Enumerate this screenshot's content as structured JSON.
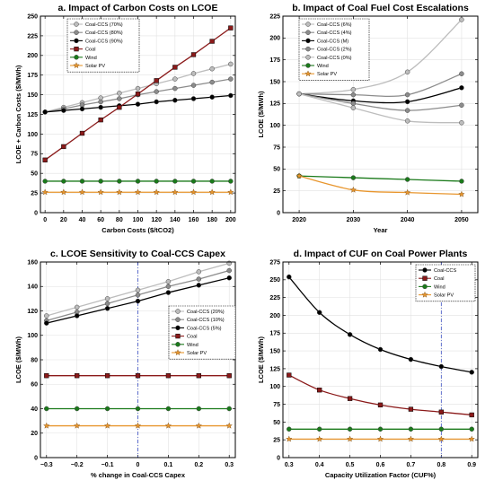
{
  "chart_data": [
    {
      "type": "line",
      "title": "a. Impact of Carbon Costs on LCOE",
      "xlabel": "Carbon Costs ($/tCO2)",
      "ylabel": "LCOE + Carbon Costs ($/MWh)",
      "xlim": [
        -5,
        205
      ],
      "ylim": [
        0,
        250
      ],
      "xticks": [
        0,
        20,
        40,
        60,
        80,
        100,
        120,
        140,
        160,
        180,
        200
      ],
      "yticks": [
        0,
        25,
        50,
        75,
        100,
        125,
        150,
        175,
        200,
        225,
        250
      ],
      "legend": "top-left",
      "x": [
        0,
        20,
        40,
        60,
        80,
        100,
        120,
        140,
        160,
        180,
        200
      ],
      "series": [
        {
          "name": "Coal-CCS (70%)",
          "color": "#bdbdbd",
          "marker": "circle",
          "values": [
            128,
            134,
            140,
            146,
            152,
            158,
            164,
            170,
            177,
            183,
            189
          ]
        },
        {
          "name": "Coal-CCS (80%)",
          "color": "#8c8c8c",
          "marker": "circle",
          "values": [
            128,
            132,
            137,
            141,
            145,
            150,
            154,
            158,
            162,
            166,
            170
          ]
        },
        {
          "name": "Coal-CCS (90%)",
          "color": "#000000",
          "marker": "circle",
          "values": [
            128,
            130,
            132,
            134,
            136,
            138,
            141,
            143,
            145,
            147,
            149
          ]
        },
        {
          "name": "Coal",
          "color": "#8b1a1a",
          "marker": "square",
          "values": [
            67,
            84,
            101,
            118,
            134,
            151,
            168,
            185,
            201,
            218,
            235
          ]
        },
        {
          "name": "Wind",
          "color": "#1a7a1a",
          "marker": "circle",
          "values": [
            40,
            40,
            40,
            40,
            40,
            40,
            40,
            40,
            40,
            40,
            40
          ]
        },
        {
          "name": "Solar PV",
          "color": "#e8962e",
          "marker": "star",
          "values": [
            26,
            26,
            26,
            26,
            26,
            26,
            26,
            26,
            26,
            26,
            26
          ]
        }
      ]
    },
    {
      "type": "line",
      "title": "b. Impact of Coal Fuel Cost Escalations",
      "xlabel": "Year",
      "ylabel": "LCOE ($/MWh)",
      "xlim": [
        2017,
        2053
      ],
      "ylim": [
        0,
        225
      ],
      "xticks": [
        2020,
        2030,
        2040,
        2050
      ],
      "yticks": [
        0,
        25,
        50,
        75,
        100,
        125,
        150,
        175,
        200,
        225
      ],
      "legend": "top-left",
      "x": [
        2020,
        2030,
        2040,
        2050
      ],
      "series": [
        {
          "name": "Coal-CCS (6%)",
          "color": "#bdbdbd",
          "marker": "circle",
          "values": [
            136,
            141,
            161,
            221
          ]
        },
        {
          "name": "Coal-CCS (4%)",
          "color": "#8c8c8c",
          "marker": "circle",
          "values": [
            136,
            135,
            135,
            159
          ]
        },
        {
          "name": "Coal-CCS (M)",
          "color": "#000000",
          "marker": "circle",
          "values": [
            136,
            128,
            127,
            143
          ]
        },
        {
          "name": "Coal-CCS (2%)",
          "color": "#8c8c8c",
          "marker": "circle",
          "values": [
            136,
            125,
            117,
            123
          ]
        },
        {
          "name": "Coal-CCS (0%)",
          "color": "#bdbdbd",
          "marker": "circle",
          "values": [
            136,
            120,
            105,
            103
          ]
        },
        {
          "name": "Wind",
          "color": "#1a7a1a",
          "marker": "circle",
          "values": [
            42,
            40,
            38,
            36
          ]
        },
        {
          "name": "Solar PV",
          "color": "#e8962e",
          "marker": "star",
          "values": [
            42,
            26,
            23,
            21
          ]
        }
      ]
    },
    {
      "type": "line",
      "title": "c. LCOE Sensitivity to Coal-CCS Capex",
      "xlabel": "% change in Coal-CCS Capex",
      "ylabel": "LCOE ($/MWh)",
      "xlim": [
        -0.32,
        0.32
      ],
      "ylim": [
        0,
        160
      ],
      "xticks": [
        -0.3,
        -0.2,
        -0.1,
        0,
        0.1,
        0.2,
        0.3
      ],
      "xticklabels": [
        "−0.3",
        "−0.2",
        "−0.1",
        "0",
        "0.1",
        "0.2",
        "0.3"
      ],
      "yticks": [
        0,
        20,
        40,
        60,
        80,
        100,
        120,
        140,
        160
      ],
      "legend": "right",
      "vline": 0,
      "x": [
        -0.3,
        -0.2,
        -0.1,
        0,
        0.1,
        0.2,
        0.3
      ],
      "series": [
        {
          "name": "Coal-CCS (20%)",
          "color": "#bdbdbd",
          "marker": "circle",
          "values": [
            116,
            123,
            130,
            137,
            144,
            152,
            159
          ]
        },
        {
          "name": "Coal-CCS (10%)",
          "color": "#8c8c8c",
          "marker": "circle",
          "values": [
            112,
            119,
            126,
            133,
            140,
            146,
            153
          ]
        },
        {
          "name": "Coal-CCS (5%)",
          "color": "#000000",
          "marker": "circle",
          "values": [
            110,
            116,
            122,
            128,
            135,
            141,
            147
          ]
        },
        {
          "name": "Coal",
          "color": "#8b1a1a",
          "marker": "square",
          "values": [
            67,
            67,
            67,
            67,
            67,
            67,
            67
          ]
        },
        {
          "name": "Wind",
          "color": "#1a7a1a",
          "marker": "circle",
          "values": [
            40,
            40,
            40,
            40,
            40,
            40,
            40
          ]
        },
        {
          "name": "Solar PV",
          "color": "#e8962e",
          "marker": "star",
          "values": [
            26,
            26,
            26,
            26,
            26,
            26,
            26
          ]
        }
      ]
    },
    {
      "type": "line",
      "title": "d. Impact of CUF on Coal Power Plants",
      "xlabel": "Capacity Utilization Factor (CUF%)",
      "ylabel": "LCOE ($/MWh)",
      "xlim": [
        0.28,
        0.92
      ],
      "ylim": [
        0,
        275
      ],
      "xticks": [
        0.3,
        0.4,
        0.5,
        0.6,
        0.7,
        0.8,
        0.9
      ],
      "yticks": [
        0,
        25,
        50,
        75,
        100,
        125,
        150,
        175,
        200,
        225,
        250,
        275
      ],
      "legend": "top-right",
      "vline": 0.8,
      "x": [
        0.3,
        0.4,
        0.5,
        0.6,
        0.7,
        0.8,
        0.9
      ],
      "series": [
        {
          "name": "Coal-CCS",
          "color": "#000000",
          "marker": "circle",
          "values": [
            254,
            204,
            173,
            152,
            138,
            128,
            120
          ]
        },
        {
          "name": "Coal",
          "color": "#8b1a1a",
          "marker": "square",
          "values": [
            116,
            95,
            83,
            74,
            68,
            64,
            60
          ]
        },
        {
          "name": "Wind",
          "color": "#1a7a1a",
          "marker": "circle",
          "values": [
            40,
            40,
            40,
            40,
            40,
            40,
            40
          ]
        },
        {
          "name": "Solar PV",
          "color": "#e8962e",
          "marker": "star",
          "values": [
            26,
            26,
            26,
            26,
            26,
            26,
            26
          ]
        }
      ]
    }
  ]
}
